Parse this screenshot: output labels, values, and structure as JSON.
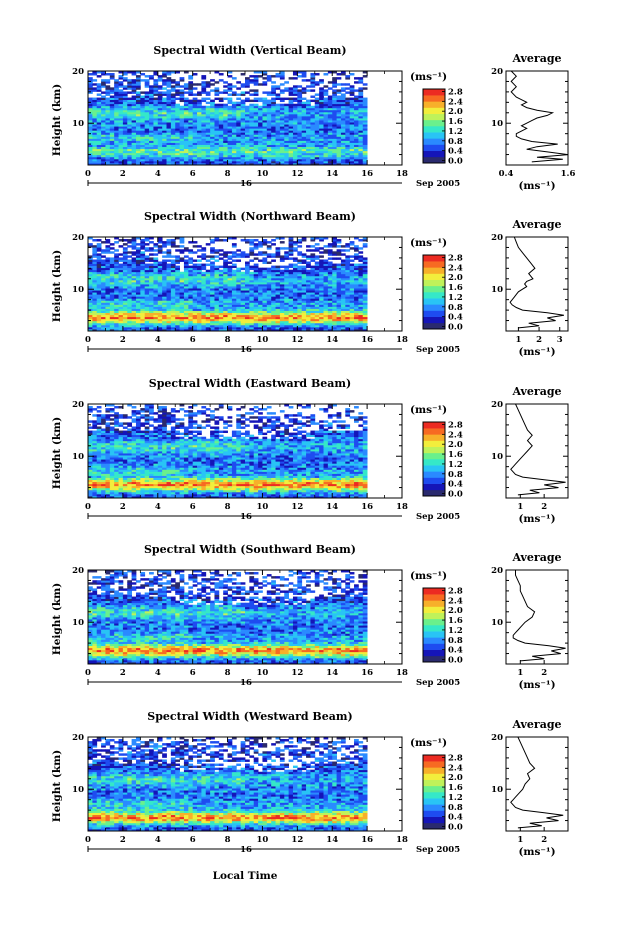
{
  "chart_data": {
    "type": "heatmap",
    "xlabel": "Local Time",
    "day_label": "16",
    "month_label": "Sep 2005",
    "x_ticks": [
      "0",
      "2",
      "4",
      "6",
      "8",
      "10",
      "12",
      "14",
      "16",
      "18"
    ],
    "xlim": [
      0,
      18
    ],
    "y_ticks": [
      "20",
      "10"
    ],
    "ylim": [
      2,
      20
    ],
    "ylabel": "Height (km)",
    "colorbar": {
      "unit": "(ms⁻¹)",
      "ticks": [
        "2.8",
        "2.4",
        "2.0",
        "1.6",
        "1.2",
        "0.8",
        "0.4",
        "0.0"
      ],
      "range": [
        0,
        3.0
      ],
      "colors": [
        "#2a2a6e",
        "#1515b8",
        "#1e4cf0",
        "#2a8aff",
        "#29c4f5",
        "#35e8c8",
        "#6af08c",
        "#bff25a",
        "#f2ee3c",
        "#f7b02a",
        "#f76a22",
        "#ec2b22"
      ]
    },
    "panels": [
      {
        "title": "Spectral Width (Vertical Beam)",
        "avg_title": "Average",
        "avg_xlabel": "(ms⁻¹)",
        "avg_xticks": [
          "0.4",
          "1.6"
        ],
        "avg_xlim": [
          0.4,
          1.6
        ],
        "avg_profile": [
          [
            2.6,
            0.9
          ],
          [
            3.1,
            1.5
          ],
          [
            3.5,
            1.0
          ],
          [
            4.0,
            1.6
          ],
          [
            4.5,
            1.2
          ],
          [
            5.0,
            0.8
          ],
          [
            5.5,
            1.0
          ],
          [
            6.0,
            1.4
          ],
          [
            6.5,
            0.9
          ],
          [
            7.0,
            0.7
          ],
          [
            7.5,
            0.6
          ],
          [
            8.0,
            0.6
          ],
          [
            8.5,
            0.7
          ],
          [
            9.0,
            0.8
          ],
          [
            9.5,
            0.7
          ],
          [
            10.0,
            0.8
          ],
          [
            10.5,
            0.9
          ],
          [
            11.0,
            1.0
          ],
          [
            11.5,
            1.2
          ],
          [
            12.0,
            1.3
          ],
          [
            12.5,
            1.0
          ],
          [
            13.0,
            0.8
          ],
          [
            13.5,
            0.7
          ],
          [
            14.0,
            0.8
          ],
          [
            14.5,
            0.7
          ],
          [
            15.0,
            0.6
          ],
          [
            16.0,
            0.5
          ],
          [
            17.0,
            0.6
          ],
          [
            18.0,
            0.5
          ],
          [
            19.0,
            0.6
          ],
          [
            20.0,
            0.5
          ]
        ]
      },
      {
        "title": "Spectral Width (Northward Beam)",
        "avg_title": "Average",
        "avg_xlabel": "(ms⁻¹)",
        "avg_xticks": [
          "1",
          "2",
          "3"
        ],
        "avg_xlim": [
          0.4,
          3.4
        ],
        "avg_profile": [
          [
            2.6,
            1.0
          ],
          [
            3.0,
            2.0
          ],
          [
            3.5,
            1.5
          ],
          [
            4.0,
            2.8
          ],
          [
            4.5,
            2.4
          ],
          [
            5.0,
            3.2
          ],
          [
            5.5,
            2.4
          ],
          [
            6.0,
            1.2
          ],
          [
            6.5,
            0.9
          ],
          [
            7.0,
            0.7
          ],
          [
            7.5,
            0.6
          ],
          [
            8.0,
            0.7
          ],
          [
            8.5,
            0.8
          ],
          [
            9.0,
            0.9
          ],
          [
            9.5,
            1.0
          ],
          [
            10.0,
            1.2
          ],
          [
            10.5,
            1.4
          ],
          [
            11.0,
            1.3
          ],
          [
            11.5,
            1.4
          ],
          [
            12.0,
            1.7
          ],
          [
            13.0,
            1.5
          ],
          [
            14.0,
            1.8
          ],
          [
            15.0,
            1.6
          ],
          [
            16.0,
            1.4
          ],
          [
            17.0,
            1.2
          ],
          [
            18.0,
            1.0
          ],
          [
            19.0,
            0.9
          ],
          [
            20.0,
            0.8
          ]
        ]
      },
      {
        "title": "Spectral Width (Eastward Beam)",
        "avg_title": "Average",
        "avg_xlabel": "(ms⁻¹)",
        "avg_xticks": [
          "1",
          "2"
        ],
        "avg_xlim": [
          0.4,
          3.0
        ],
        "avg_profile": [
          [
            2.6,
            0.9
          ],
          [
            3.0,
            1.8
          ],
          [
            3.5,
            1.4
          ],
          [
            4.0,
            2.6
          ],
          [
            4.5,
            2.0
          ],
          [
            5.0,
            2.9
          ],
          [
            5.5,
            2.0
          ],
          [
            6.0,
            1.1
          ],
          [
            6.5,
            0.8
          ],
          [
            7.0,
            0.7
          ],
          [
            7.5,
            0.6
          ],
          [
            8.0,
            0.7
          ],
          [
            8.5,
            0.8
          ],
          [
            9.0,
            0.9
          ],
          [
            10.0,
            1.1
          ],
          [
            11.0,
            1.3
          ],
          [
            12.0,
            1.5
          ],
          [
            13.0,
            1.3
          ],
          [
            14.0,
            1.5
          ],
          [
            15.0,
            1.3
          ],
          [
            16.0,
            1.2
          ],
          [
            17.0,
            1.1
          ],
          [
            18.0,
            1.0
          ],
          [
            19.0,
            0.9
          ],
          [
            20.0,
            0.8
          ]
        ]
      },
      {
        "title": "Spectral Width (Southward Beam)",
        "avg_title": "Average",
        "avg_xlabel": "(ms⁻¹)",
        "avg_xticks": [
          "1",
          "2"
        ],
        "avg_xlim": [
          0.4,
          3.0
        ],
        "avg_profile": [
          [
            2.6,
            1.0
          ],
          [
            3.0,
            2.0
          ],
          [
            3.5,
            1.5
          ],
          [
            4.0,
            2.7
          ],
          [
            4.5,
            2.3
          ],
          [
            5.0,
            2.9
          ],
          [
            5.5,
            2.2
          ],
          [
            6.0,
            1.2
          ],
          [
            6.5,
            0.9
          ],
          [
            7.0,
            0.7
          ],
          [
            7.5,
            0.7
          ],
          [
            8.0,
            0.8
          ],
          [
            8.5,
            0.9
          ],
          [
            9.0,
            1.0
          ],
          [
            10.0,
            1.2
          ],
          [
            11.0,
            1.5
          ],
          [
            12.0,
            1.6
          ],
          [
            13.0,
            1.3
          ],
          [
            14.0,
            1.2
          ],
          [
            15.0,
            1.1
          ],
          [
            16.0,
            1.0
          ],
          [
            17.0,
            1.0
          ],
          [
            18.0,
            0.9
          ],
          [
            19.0,
            0.8
          ],
          [
            20.0,
            0.8
          ]
        ]
      },
      {
        "title": "Spectral Width (Westward Beam)",
        "avg_title": "Average",
        "avg_xlabel": "(ms⁻¹)",
        "avg_xticks": [
          "1",
          "2"
        ],
        "avg_xlim": [
          0.4,
          3.0
        ],
        "avg_profile": [
          [
            2.6,
            0.9
          ],
          [
            3.0,
            1.9
          ],
          [
            3.5,
            1.4
          ],
          [
            4.0,
            2.6
          ],
          [
            4.5,
            2.1
          ],
          [
            5.0,
            2.8
          ],
          [
            5.5,
            2.0
          ],
          [
            6.0,
            1.1
          ],
          [
            6.5,
            0.8
          ],
          [
            7.0,
            0.7
          ],
          [
            7.5,
            0.6
          ],
          [
            8.0,
            0.7
          ],
          [
            8.5,
            0.8
          ],
          [
            9.0,
            0.9
          ],
          [
            10.0,
            1.1
          ],
          [
            11.0,
            1.2
          ],
          [
            12.0,
            1.4
          ],
          [
            13.0,
            1.3
          ],
          [
            14.0,
            1.6
          ],
          [
            15.0,
            1.4
          ],
          [
            16.0,
            1.3
          ],
          [
            17.0,
            1.2
          ],
          [
            18.0,
            1.1
          ],
          [
            19.0,
            1.0
          ],
          [
            20.0,
            0.9
          ]
        ]
      }
    ]
  }
}
